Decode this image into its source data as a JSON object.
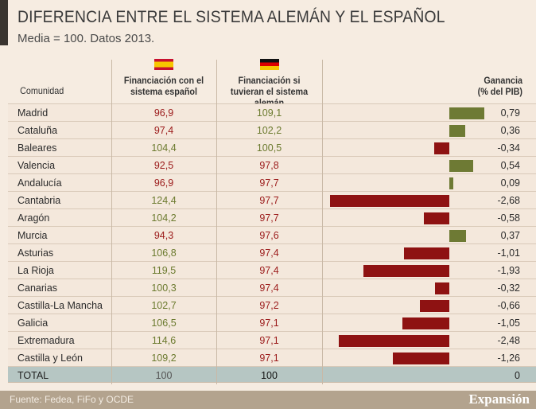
{
  "title": "DIFERENCIA ENTRE EL SISTEMA ALEMÁN Y EL ESPAÑOL",
  "subtitle": "Media = 100. Datos 2013.",
  "colors": {
    "positive": "#6e7a34",
    "negative": "#8e1212",
    "pos_text": "#6b7a2e",
    "neg_text": "#9b1a1a"
  },
  "chart_data": {
    "type": "table",
    "columns": [
      "Comunidad",
      "Financiación con el sistema español",
      "Financiación si tuvieran el sistema alemán",
      "Ganancia (% del PIB)"
    ],
    "rows": [
      {
        "name": "Madrid",
        "es": "96,9",
        "de": "109,1",
        "gain": 0.79,
        "gain_label": "0,79"
      },
      {
        "name": "Cataluña",
        "es": "97,4",
        "de": "102,2",
        "gain": 0.36,
        "gain_label": "0,36"
      },
      {
        "name": "Baleares",
        "es": "104,4",
        "de": "100,5",
        "gain": -0.34,
        "gain_label": "-0,34"
      },
      {
        "name": "Valencia",
        "es": "92,5",
        "de": "97,8",
        "gain": 0.54,
        "gain_label": "0,54"
      },
      {
        "name": "Andalucía",
        "es": "96,9",
        "de": "97,7",
        "gain": 0.09,
        "gain_label": "0,09"
      },
      {
        "name": "Cantabria",
        "es": "124,4",
        "de": "97,7",
        "gain": -2.68,
        "gain_label": "-2,68"
      },
      {
        "name": "Aragón",
        "es": "104,2",
        "de": "97,7",
        "gain": -0.58,
        "gain_label": "-0,58"
      },
      {
        "name": "Murcia",
        "es": "94,3",
        "de": "97,6",
        "gain": 0.37,
        "gain_label": "0,37"
      },
      {
        "name": "Asturias",
        "es": "106,8",
        "de": "97,4",
        "gain": -1.01,
        "gain_label": "-1,01"
      },
      {
        "name": "La Rioja",
        "es": "119,5",
        "de": "97,4",
        "gain": -1.93,
        "gain_label": "-1,93"
      },
      {
        "name": "Canarias",
        "es": "100,3",
        "de": "97,4",
        "gain": -0.32,
        "gain_label": "-0,32"
      },
      {
        "name": "Castilla-La Mancha",
        "es": "102,7",
        "de": "97,2",
        "gain": -0.66,
        "gain_label": "-0,66"
      },
      {
        "name": "Galicia",
        "es": "106,5",
        "de": "97,1",
        "gain": -1.05,
        "gain_label": "-1,05"
      },
      {
        "name": "Extremadura",
        "es": "114,6",
        "de": "97,1",
        "gain": -2.48,
        "gain_label": "-2,48"
      },
      {
        "name": "Castilla y León",
        "es": "109,2",
        "de": "97,1",
        "gain": -1.26,
        "gain_label": "-1,26"
      }
    ],
    "total": {
      "name": "TOTAL",
      "es": "100",
      "de": "100",
      "gain_label": "0"
    }
  },
  "headers": {
    "name": "Comunidad",
    "es": "Financiación con el sistema español",
    "de": "Financiación si tuvieran el sistema alemán",
    "gain": "Ganancia (% del PIB)"
  },
  "footer": {
    "source": "Fuente: Fedea, FiFo y OCDE",
    "logo": "Expansión"
  }
}
